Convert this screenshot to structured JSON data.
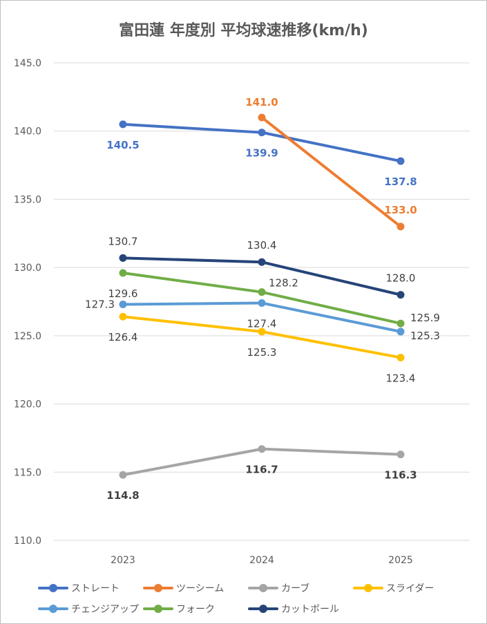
{
  "chart_data": {
    "type": "line",
    "title": "富田蓮 年度別 平均球速推移(km/h)",
    "xlabel": "",
    "ylabel": "",
    "categories": [
      "2023",
      "2024",
      "2025"
    ],
    "ylim": [
      110,
      145
    ],
    "yticks": [
      "110.0",
      "115.0",
      "120.0",
      "125.0",
      "130.0",
      "135.0",
      "140.0",
      "145.0"
    ],
    "grid": true,
    "legend_position": "bottom",
    "series": [
      {
        "name": "ストレート",
        "color": "#4472C4",
        "values": [
          140.5,
          139.9,
          137.8
        ],
        "labels": [
          "140.5",
          "139.9",
          "137.8"
        ]
      },
      {
        "name": "ツーシーム",
        "color": "#ED7D31",
        "values": [
          null,
          141.0,
          133.0
        ],
        "labels": [
          "",
          "141.0",
          "133.0"
        ]
      },
      {
        "name": "カーブ",
        "color": "#A5A5A5",
        "values": [
          114.8,
          116.7,
          116.3
        ],
        "labels": [
          "114.8",
          "116.7",
          "116.3"
        ]
      },
      {
        "name": "スライダー",
        "color": "#FFC000",
        "values": [
          126.4,
          125.3,
          123.4
        ],
        "labels": [
          "126.4",
          "125.3",
          "123.4"
        ]
      },
      {
        "name": "チェンジアップ",
        "color": "#5B9BD5",
        "values": [
          127.3,
          127.4,
          125.3
        ],
        "labels": [
          "127.3",
          "127.4",
          "125.3"
        ]
      },
      {
        "name": "フォーク",
        "color": "#70AD47",
        "values": [
          129.6,
          128.2,
          125.9
        ],
        "labels": [
          "129.6",
          "128.2",
          "125.9"
        ]
      },
      {
        "name": "カットボール",
        "color": "#264478",
        "values": [
          130.7,
          130.4,
          128.0
        ],
        "labels": [
          "130.7",
          "130.4",
          "128.0"
        ]
      }
    ]
  }
}
